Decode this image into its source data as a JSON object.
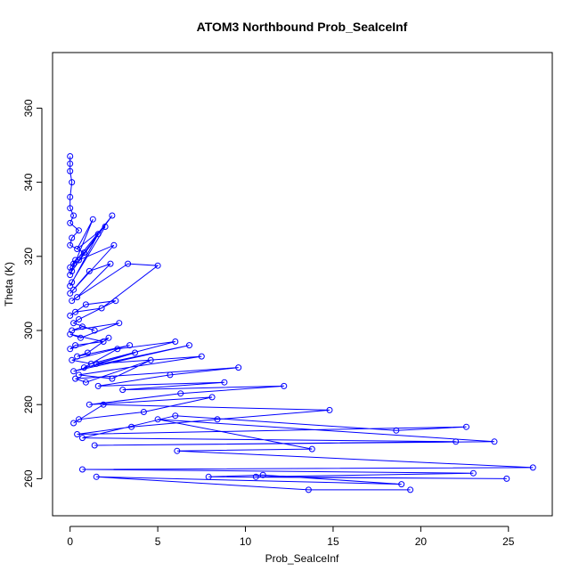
{
  "chart_data": {
    "type": "line",
    "title": "ATOM3 Northbound Prob_SeaIceInf",
    "xlabel": "Prob_SeaIceInf",
    "ylabel": "Theta (K)",
    "xlim": [
      -1,
      27.5
    ],
    "ylim": [
      250,
      375
    ],
    "xticks": [
      0,
      5,
      10,
      15,
      20,
      25
    ],
    "yticks": [
      260,
      280,
      300,
      320,
      340,
      360
    ],
    "series_color": "#0000ff",
    "marker": "open-circle",
    "series": [
      {
        "name": "Prob_SeaIceInf",
        "x": [
          0,
          0,
          0,
          0.1,
          0,
          0,
          0.2,
          0,
          0.5,
          0.1,
          0,
          0.8,
          0.3,
          0,
          0.1,
          2.4,
          0.2,
          0,
          1.3,
          0.4,
          2.0,
          0.1,
          0,
          1.6,
          0.5,
          2.5,
          0.2,
          0,
          1.1,
          2.3,
          0.4,
          0.1,
          3.3,
          5.0,
          1.8,
          0.3,
          0,
          0.9,
          2.6,
          0.5,
          0.2,
          1.4,
          0.7,
          0.1,
          2.8,
          0.6,
          0,
          1.9,
          0.3,
          0,
          2.2,
          1.0,
          0.4,
          3.4,
          0.1,
          1.2,
          6.0,
          2.7,
          0.8,
          6.8,
          0.2,
          3.7,
          1.5,
          7.5,
          0.5,
          2.4,
          4.6,
          0.9,
          0.3,
          9.6,
          5.7,
          1.6,
          8.8,
          3.0,
          12.2,
          6.3,
          1.1,
          8.1,
          4.2,
          0.5,
          0.2,
          1.9,
          14.8,
          8.4,
          3.5,
          0.4,
          22.6,
          18.6,
          6.0,
          0.7,
          22.0,
          1.4,
          24.2,
          5.0,
          13.8,
          6.1,
          26.4,
          0.7,
          23.0,
          10.6,
          24.9,
          7.9,
          11.0,
          18.9,
          1.5,
          13.6,
          19.4
        ],
        "y": [
          347,
          345,
          343,
          340,
          336,
          333,
          331,
          329,
          327,
          325,
          323,
          321,
          319,
          317,
          316,
          331,
          318,
          315,
          330,
          322,
          328,
          313,
          312,
          326,
          319,
          323,
          311,
          310,
          316,
          318,
          309,
          308,
          318,
          317.5,
          306,
          305,
          304,
          307,
          308,
          303,
          302,
          300,
          301,
          300,
          302,
          298,
          299,
          297,
          296,
          295,
          298,
          294,
          293,
          296,
          292,
          291,
          297,
          295,
          290,
          296,
          289,
          294,
          291,
          293,
          288,
          287,
          292,
          286,
          287,
          290,
          288,
          285,
          286,
          284,
          285,
          283,
          280,
          282,
          278,
          276,
          275,
          280,
          278.5,
          276,
          274,
          272,
          274,
          273,
          277,
          271,
          270,
          269,
          270,
          276,
          268,
          267.5,
          263,
          262.5,
          261.5,
          260.5,
          260,
          260.5,
          261,
          258.5,
          260.5,
          257,
          257
        ]
      }
    ]
  }
}
